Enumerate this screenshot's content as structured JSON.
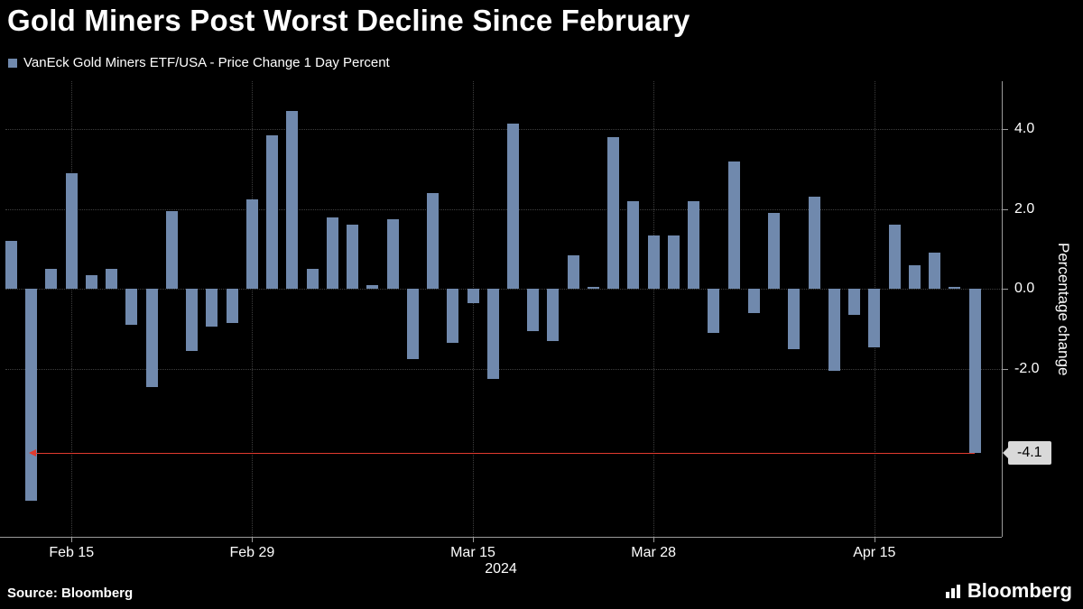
{
  "header": {
    "title": "Gold Miners Post Worst Decline Since February",
    "legend_label": "VanEck Gold Miners ETF/USA - Price Change 1 Day Percent"
  },
  "footer": {
    "source": "Source: Bloomberg",
    "logo": "Bloomberg"
  },
  "chart_data": {
    "type": "bar",
    "title": "Gold Miners Post Worst Decline Since February",
    "series_name": "VanEck Gold Miners ETF/USA - Price Change 1 Day Percent",
    "ylabel": "Percentage change",
    "xlabel_year": "2024",
    "ylim": [
      -6.2,
      5.2
    ],
    "yticks": [
      "4.0",
      "2.0",
      "0.0",
      "-2.0"
    ],
    "xticks": [
      {
        "label": "Feb 15",
        "index": 3
      },
      {
        "label": "Feb 29",
        "index": 12
      },
      {
        "label": "Mar 15",
        "index": 23
      },
      {
        "label": "Mar 28",
        "index": 32
      },
      {
        "label": "Apr 15",
        "index": 43
      }
    ],
    "values": [
      1.2,
      -5.3,
      0.5,
      2.9,
      0.35,
      0.5,
      -0.9,
      -2.45,
      1.95,
      -1.55,
      -0.95,
      -0.85,
      2.25,
      3.85,
      4.45,
      0.5,
      1.8,
      1.6,
      0.1,
      1.75,
      -1.75,
      2.4,
      -1.35,
      -0.35,
      -2.25,
      4.15,
      -1.05,
      -1.3,
      0.85,
      0.05,
      3.8,
      2.2,
      1.35,
      1.35,
      2.2,
      -1.1,
      3.2,
      -0.6,
      1.9,
      -1.5,
      2.3,
      -2.05,
      -0.65,
      -1.45,
      1.6,
      0.6,
      0.9,
      0.05,
      -4.1
    ],
    "bar_color": "#7089ad",
    "grid": true,
    "legend_position": "top-left",
    "annotation": {
      "label": "-4.1",
      "value": -4.1,
      "line_color": "#e03a2e",
      "badge_bg": "#d9d9d9",
      "badge_text_color": "#000000",
      "from_index": 1,
      "to_index": 48
    }
  }
}
